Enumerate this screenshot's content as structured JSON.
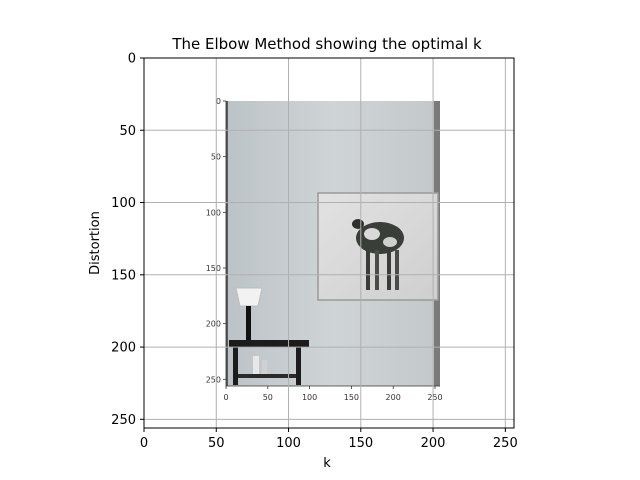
{
  "chart_data": {
    "type": "image",
    "title": "The Elbow Method showing the optimal k",
    "xlabel": "k",
    "ylabel": "Distortion",
    "xlim": [
      0,
      256
    ],
    "ylim": [
      256,
      0
    ],
    "y_inverted": true,
    "grid": true,
    "x_ticks": [
      0,
      50,
      100,
      150,
      200,
      250
    ],
    "y_ticks": [
      0,
      50,
      100,
      150,
      200,
      250
    ],
    "x_tick_labels": [
      "0",
      "50",
      "100",
      "150",
      "200",
      "250"
    ],
    "y_tick_labels": [
      "0",
      "50",
      "100",
      "150",
      "200",
      "250"
    ],
    "embedded_image": {
      "description": "photo of a grey room with a wall-mounted framed cow picture and a small black side table with a white lamp",
      "x_ticks": [
        0,
        50,
        100,
        150,
        200,
        250
      ],
      "y_ticks": [
        0,
        50,
        100,
        150,
        200,
        250
      ],
      "x_tick_labels": [
        "0",
        "50",
        "100",
        "150",
        "200",
        "250"
      ],
      "y_tick_labels": [
        "0",
        "50",
        "100",
        "150",
        "200",
        "250"
      ],
      "extent_outer": {
        "x": [
          57,
          205
        ],
        "y": [
          30,
          227
        ]
      }
    },
    "colors": {
      "wall": "#c8cdd0",
      "frame": "#dcdcdc",
      "furniture": "#1e1e1e",
      "grid": "#b0b0b0"
    }
  }
}
